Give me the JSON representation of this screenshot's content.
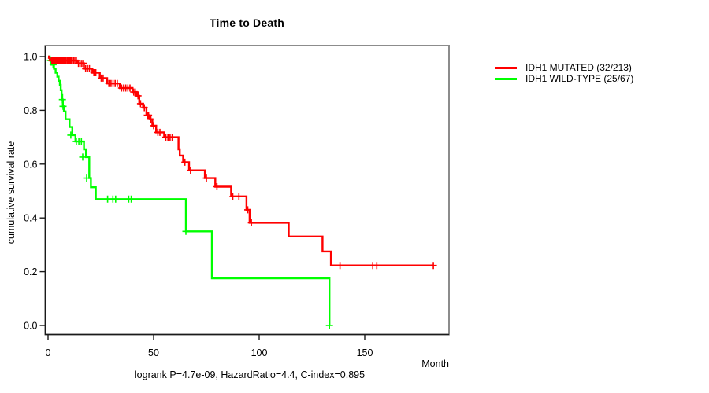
{
  "chart_data": {
    "type": "line",
    "subtype": "kaplan-meier-step-survival",
    "title": "Time to Death",
    "xlabel": "Month",
    "ylabel": "cumulative survival rate",
    "caption": "logrank P=4.7e-09, HazardRatio=4.4, C-index=0.895",
    "xlim": [
      0,
      190
    ],
    "ylim": [
      0.0,
      1.0
    ],
    "x_ticks": [
      0,
      50,
      100,
      150
    ],
    "y_ticks": [
      1.0,
      0.8,
      0.6,
      0.4,
      0.2,
      0.0
    ],
    "grid": false,
    "legend_position": "right-outside-top",
    "series": [
      {
        "name": "IDH1 MUTATED (32/213)",
        "group": "IDH1 MUTATED",
        "events": 32,
        "n": 213,
        "color": "#ff0000",
        "end_month": 182.5,
        "steps": [
          [
            0,
            1.0
          ],
          [
            0.4,
            0.995
          ],
          [
            0.9,
            0.99
          ],
          [
            1.4,
            0.985
          ],
          [
            14,
            0.975
          ],
          [
            17,
            0.955
          ],
          [
            21,
            0.94
          ],
          [
            24.5,
            0.92
          ],
          [
            28,
            0.9
          ],
          [
            34,
            0.883
          ],
          [
            40,
            0.868
          ],
          [
            42,
            0.854
          ],
          [
            43.2,
            0.825
          ],
          [
            45,
            0.81
          ],
          [
            46.6,
            0.782
          ],
          [
            48.1,
            0.767
          ],
          [
            49.4,
            0.743
          ],
          [
            51.2,
            0.718
          ],
          [
            55,
            0.7
          ],
          [
            61.8,
            0.655
          ],
          [
            62.4,
            0.632
          ],
          [
            64,
            0.607
          ],
          [
            66.8,
            0.577
          ],
          [
            74.3,
            0.548
          ],
          [
            79.2,
            0.516
          ],
          [
            86.7,
            0.48
          ],
          [
            94,
            0.43
          ],
          [
            95.5,
            0.382
          ],
          [
            114,
            0.331
          ],
          [
            130,
            0.275
          ],
          [
            134,
            0.223
          ]
        ],
        "censors": [
          [
            1.8,
            0.985
          ],
          [
            2.2,
            0.985
          ],
          [
            2.6,
            0.985
          ],
          [
            3.0,
            0.985
          ],
          [
            3.4,
            0.985
          ],
          [
            3.8,
            0.985
          ],
          [
            4.2,
            0.985
          ],
          [
            4.6,
            0.985
          ],
          [
            5.0,
            0.985
          ],
          [
            5.4,
            0.985
          ],
          [
            5.8,
            0.985
          ],
          [
            6.3,
            0.985
          ],
          [
            6.8,
            0.985
          ],
          [
            7.3,
            0.985
          ],
          [
            7.8,
            0.985
          ],
          [
            8.3,
            0.985
          ],
          [
            8.9,
            0.985
          ],
          [
            9.5,
            0.985
          ],
          [
            10.1,
            0.985
          ],
          [
            10.7,
            0.985
          ],
          [
            11.3,
            0.985
          ],
          [
            12.0,
            0.985
          ],
          [
            12.7,
            0.985
          ],
          [
            13.4,
            0.985
          ],
          [
            14.4,
            0.975
          ],
          [
            15.2,
            0.975
          ],
          [
            16.0,
            0.975
          ],
          [
            16.8,
            0.975
          ],
          [
            17.8,
            0.955
          ],
          [
            18.7,
            0.955
          ],
          [
            19.6,
            0.955
          ],
          [
            21.7,
            0.94
          ],
          [
            22.6,
            0.94
          ],
          [
            25.2,
            0.92
          ],
          [
            26.1,
            0.92
          ],
          [
            28.8,
            0.9
          ],
          [
            29.8,
            0.9
          ],
          [
            30.8,
            0.9
          ],
          [
            31.8,
            0.9
          ],
          [
            32.8,
            0.9
          ],
          [
            34.8,
            0.883
          ],
          [
            35.8,
            0.883
          ],
          [
            36.8,
            0.883
          ],
          [
            37.8,
            0.883
          ],
          [
            38.8,
            0.883
          ],
          [
            40.6,
            0.868
          ],
          [
            41.3,
            0.868
          ],
          [
            42.6,
            0.854
          ],
          [
            43.8,
            0.825
          ],
          [
            45.6,
            0.81
          ],
          [
            47.0,
            0.782
          ],
          [
            47.6,
            0.782
          ],
          [
            48.7,
            0.767
          ],
          [
            50.0,
            0.743
          ],
          [
            52.0,
            0.718
          ],
          [
            53.0,
            0.718
          ],
          [
            55.8,
            0.7
          ],
          [
            56.8,
            0.7
          ],
          [
            57.8,
            0.7
          ],
          [
            58.8,
            0.7
          ],
          [
            64.8,
            0.607
          ],
          [
            67.5,
            0.577
          ],
          [
            75.0,
            0.548
          ],
          [
            80.0,
            0.516
          ],
          [
            87.5,
            0.48
          ],
          [
            90.4,
            0.48
          ],
          [
            94.6,
            0.43
          ],
          [
            96.3,
            0.382
          ],
          [
            138.3,
            0.223
          ],
          [
            153.8,
            0.223
          ],
          [
            155.7,
            0.223
          ],
          [
            182.5,
            0.223
          ]
        ]
      },
      {
        "name": "IDH1 WILD-TYPE (25/67)",
        "group": "IDH1 WILD-TYPE",
        "events": 25,
        "n": 67,
        "color": "#00ff00",
        "end_month": 133.3,
        "steps": [
          [
            0,
            1.0
          ],
          [
            0.8,
            0.985
          ],
          [
            1.6,
            0.97
          ],
          [
            2.8,
            0.955
          ],
          [
            3.6,
            0.94
          ],
          [
            4.4,
            0.925
          ],
          [
            5.0,
            0.91
          ],
          [
            5.6,
            0.895
          ],
          [
            6.0,
            0.875
          ],
          [
            6.4,
            0.86
          ],
          [
            6.7,
            0.84
          ],
          [
            7.0,
            0.815
          ],
          [
            7.5,
            0.796
          ],
          [
            8.3,
            0.767
          ],
          [
            10.2,
            0.738
          ],
          [
            11.5,
            0.708
          ],
          [
            13.0,
            0.684
          ],
          [
            17.0,
            0.655
          ],
          [
            18.0,
            0.626
          ],
          [
            19.5,
            0.548
          ],
          [
            20.3,
            0.514
          ],
          [
            22.6,
            0.47
          ],
          [
            65.3,
            0.35
          ],
          [
            77.6,
            0.175
          ],
          [
            133.3,
            0.0
          ]
        ],
        "censors": [
          [
            1.2,
            0.985
          ],
          [
            2.4,
            0.97
          ],
          [
            6.8,
            0.84
          ],
          [
            7.1,
            0.815
          ],
          [
            10.8,
            0.708
          ],
          [
            13.4,
            0.684
          ],
          [
            14.6,
            0.684
          ],
          [
            15.8,
            0.684
          ],
          [
            16.4,
            0.626
          ],
          [
            18.3,
            0.548
          ],
          [
            28.2,
            0.47
          ],
          [
            30.7,
            0.47
          ],
          [
            32.0,
            0.47
          ],
          [
            38.2,
            0.47
          ],
          [
            39.4,
            0.47
          ],
          [
            65.3,
            0.35
          ],
          [
            133.3,
            0.0
          ]
        ]
      }
    ],
    "stats": {
      "logrank_p": "4.7e-09",
      "hazard_ratio": "4.4",
      "c_index": "0.895"
    },
    "colors": {
      "mutated": "#ff0000",
      "wild_type": "#00ff00",
      "axis": "#1a1a1a",
      "box_border": "#8c8c8c",
      "background": "#ffffff"
    }
  }
}
